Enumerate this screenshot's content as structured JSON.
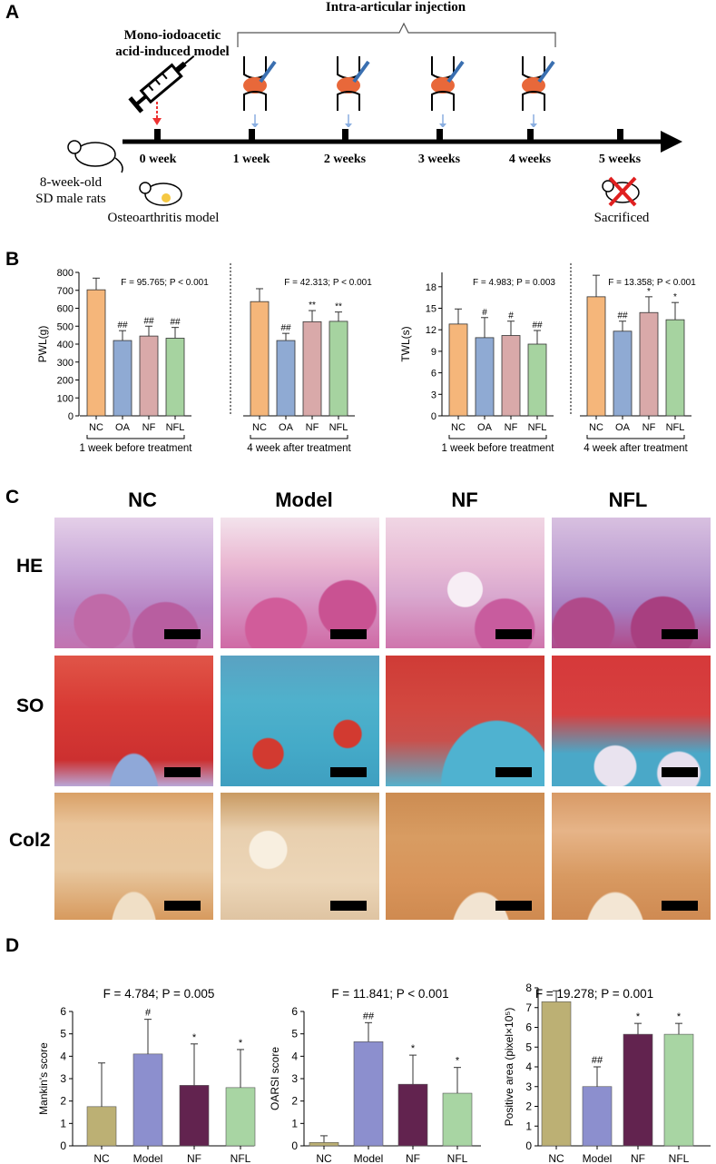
{
  "panels": {
    "a": "A",
    "b": "B",
    "c": "C",
    "d": "D"
  },
  "panel_a": {
    "injection_label": "Intra-articular injection",
    "model_label_1": "Mono-iodoacetic",
    "model_label_2": "acid-induced model",
    "rats_label_1": "8-week-old",
    "rats_label_2": "SD male rats",
    "oa_model_label": "Osteoarthritis model",
    "sacrificed_label": "Sacrificed",
    "weeks": [
      "0 week",
      "1 week",
      "2 weeks",
      "3 weeks",
      "4 weeks",
      "5 weeks"
    ]
  },
  "panel_c": {
    "columns": [
      "NC",
      "Model",
      "NF",
      "NFL"
    ],
    "rows": [
      "HE",
      "SO",
      "Col2"
    ]
  },
  "chart_data": [
    {
      "type": "bar",
      "ylabel": "PWL(g)",
      "ylim": [
        0,
        800
      ],
      "yticks": [
        "0",
        "100",
        "200",
        "300",
        "400",
        "500",
        "600",
        "700",
        "800"
      ],
      "groups": [
        {
          "label": "1 week before treatment",
          "stat": "F = 95.765; P < 0.001",
          "categories": [
            "NC",
            "OA",
            "NF",
            "NFL"
          ],
          "values": [
            703,
            420,
            445,
            433
          ],
          "errors": [
            65,
            55,
            55,
            60
          ],
          "marks": [
            "",
            "##",
            "##",
            "##"
          ]
        },
        {
          "label": "4 week after treatment",
          "stat": "F = 42.313; P < 0.001",
          "categories": [
            "NC",
            "OA",
            "NF",
            "NFL"
          ],
          "values": [
            637,
            420,
            525,
            527
          ],
          "errors": [
            72,
            40,
            62,
            52
          ],
          "marks": [
            "",
            "##",
            "**",
            "**"
          ]
        }
      ],
      "colors": [
        "#F5B67A",
        "#8FAAD3",
        "#D9A9A9",
        "#A6D3A0"
      ]
    },
    {
      "type": "bar",
      "ylabel": "TWL(s)",
      "ylim": [
        0,
        20
      ],
      "yticks": [
        "0",
        "3",
        "6",
        "9",
        "12",
        "15",
        "18"
      ],
      "groups": [
        {
          "label": "1 week before treatment",
          "stat": "F = 4.983; P = 0.003",
          "categories": [
            "NC",
            "OA",
            "NF",
            "NFL"
          ],
          "values": [
            12.8,
            10.9,
            11.2,
            10.0
          ],
          "errors": [
            2.1,
            2.8,
            2.0,
            1.9
          ],
          "marks": [
            "",
            "#",
            "#",
            "##"
          ]
        },
        {
          "label": "4 week after treatment",
          "stat": "F = 13.358; P < 0.001",
          "categories": [
            "NC",
            "OA",
            "NF",
            "NFL"
          ],
          "values": [
            16.6,
            11.8,
            14.4,
            13.4
          ],
          "errors": [
            3.0,
            1.4,
            2.2,
            2.4
          ],
          "marks": [
            "",
            "##",
            "*",
            "*"
          ]
        }
      ],
      "colors": [
        "#F5B67A",
        "#8FAAD3",
        "#D9A9A9",
        "#A6D3A0"
      ]
    },
    {
      "type": "bar",
      "title": "F = 4.784; P = 0.005",
      "ylabel": "Mankin's score",
      "ylim": [
        0,
        6
      ],
      "yticks": [
        "0",
        "1",
        "2",
        "3",
        "4",
        "5",
        "6"
      ],
      "categories": [
        "NC",
        "Model",
        "NF",
        "NFL"
      ],
      "values": [
        1.75,
        4.1,
        2.7,
        2.6
      ],
      "errors": [
        1.95,
        1.55,
        1.85,
        1.7
      ],
      "marks": [
        "",
        "#",
        "*",
        "*"
      ],
      "colors": [
        "#BCB074",
        "#8C8FCE",
        "#62234F",
        "#A8D5A3"
      ]
    },
    {
      "type": "bar",
      "title": "F = 11.841; P < 0.001",
      "ylabel": "OARSI score",
      "ylim": [
        0,
        6
      ],
      "yticks": [
        "0",
        "1",
        "2",
        "3",
        "4",
        "5",
        "6"
      ],
      "categories": [
        "NC",
        "Model",
        "NF",
        "NFL"
      ],
      "values": [
        0.15,
        4.65,
        2.75,
        2.35
      ],
      "errors": [
        0.3,
        0.85,
        1.3,
        1.15
      ],
      "marks": [
        "",
        "##",
        "*",
        "*"
      ],
      "colors": [
        "#BCB074",
        "#8C8FCE",
        "#62234F",
        "#A8D5A3"
      ]
    },
    {
      "type": "bar",
      "title": "F = 19.278; P = 0.001",
      "ylabel": "Positive area (pixel×10⁵)",
      "ylim": [
        0,
        8
      ],
      "yticks": [
        "0",
        "1",
        "2",
        "3",
        "4",
        "5",
        "6",
        "7",
        "8"
      ],
      "categories": [
        "NC",
        "Model",
        "NF",
        "NFL"
      ],
      "values": [
        7.3,
        3.0,
        5.65,
        5.65
      ],
      "errors": [
        0.55,
        1.0,
        0.55,
        0.55
      ],
      "marks": [
        "",
        "##",
        "*",
        "*"
      ],
      "colors": [
        "#BCB074",
        "#8C8FCE",
        "#62234F",
        "#A8D5A3"
      ]
    }
  ]
}
